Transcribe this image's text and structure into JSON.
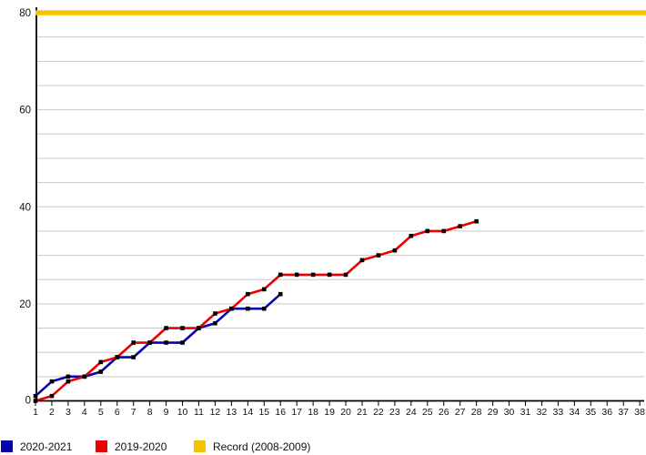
{
  "chart_data": {
    "type": "line",
    "title": "",
    "xlabel": "",
    "ylabel": "",
    "x_range": [
      1,
      38
    ],
    "ylim": [
      0,
      80
    ],
    "y_tick_labels": [
      0,
      20,
      40,
      60,
      80
    ],
    "grid_step": 5,
    "grid": true,
    "grid_color": "#c8c8c8",
    "axis_color": "#000000",
    "legend_position": "bottom",
    "x_tick_labels": [
      1,
      2,
      3,
      4,
      5,
      6,
      7,
      8,
      9,
      10,
      11,
      12,
      13,
      14,
      15,
      16,
      17,
      18,
      19,
      20,
      21,
      22,
      23,
      24,
      25,
      26,
      27,
      28,
      29,
      30,
      31,
      32,
      33,
      34,
      35,
      36,
      37,
      38
    ],
    "series": [
      {
        "name": "2020-2021",
        "type": "line",
        "color": "#0404AA",
        "marker": "square",
        "marker_color": "#000000",
        "x": [
          1,
          2,
          3,
          4,
          5,
          6,
          7,
          8,
          9,
          10,
          11,
          12,
          13,
          14,
          15,
          16
        ],
        "values": [
          1,
          4,
          5,
          5,
          6,
          9,
          9,
          12,
          12,
          12,
          15,
          16,
          19,
          19,
          19,
          22
        ]
      },
      {
        "name": "2019-2020",
        "type": "line",
        "color": "#EB0000",
        "marker": "square",
        "marker_color": "#000000",
        "x": [
          1,
          2,
          3,
          4,
          5,
          6,
          7,
          8,
          9,
          10,
          11,
          12,
          13,
          14,
          15,
          16,
          17,
          18,
          19,
          20,
          21,
          22,
          23,
          24,
          25,
          26,
          27,
          28
        ],
        "values": [
          0,
          1,
          4,
          5,
          8,
          9,
          12,
          12,
          15,
          15,
          15,
          18,
          19,
          22,
          23,
          26,
          26,
          26,
          26,
          26,
          29,
          30,
          31,
          34,
          35,
          35,
          36,
          37
        ]
      },
      {
        "name": "Record (2008-2009)",
        "type": "hline",
        "color": "#F2C400",
        "value": 80
      }
    ]
  }
}
